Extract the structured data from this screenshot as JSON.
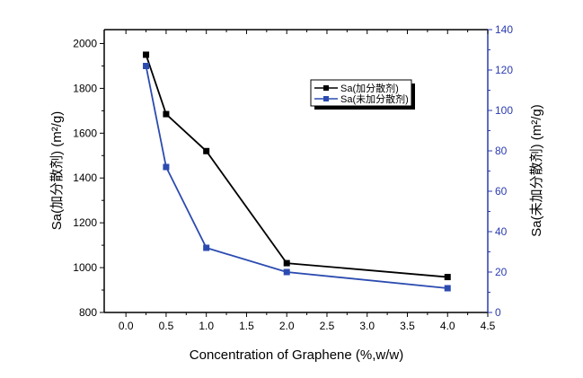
{
  "chart_data": {
    "type": "line",
    "xlabel": "Concentration of Graphene (%,w/w)",
    "ylabel_left": "Sa(加分散剂) (m²/g)",
    "ylabel_right": "Sa(未加分散剂) (m²/g)",
    "xlim": [
      -0.27,
      4.5
    ],
    "ylim_left": [
      800,
      2062
    ],
    "ylim_right": [
      0,
      140
    ],
    "x_ticks": [
      "0.0",
      "0.5",
      "1.0",
      "1.5",
      "2.0",
      "2.5",
      "3.0",
      "3.5",
      "4.0",
      "4.5"
    ],
    "y_left_ticks": [
      "800",
      "1000",
      "1200",
      "1400",
      "1600",
      "1800",
      "2000"
    ],
    "y_right_ticks": [
      "0",
      "20",
      "40",
      "60",
      "80",
      "100",
      "120",
      "140"
    ],
    "legend_position": "top-right",
    "series": [
      {
        "name": "Sa(加分散剂)",
        "axis": "left",
        "color": "#000000",
        "x": [
          0.25,
          0.5,
          1.0,
          2.0,
          4.0
        ],
        "y": [
          1950,
          1685,
          1520,
          1020,
          958
        ]
      },
      {
        "name": "Sa(未加分散剂)",
        "axis": "right",
        "color": "#2b4bb0",
        "x": [
          0.25,
          0.5,
          1.0,
          2.0,
          4.0
        ],
        "y": [
          122,
          72,
          32,
          20,
          12
        ]
      }
    ],
    "right_axis_color": "#2b3bb0"
  }
}
